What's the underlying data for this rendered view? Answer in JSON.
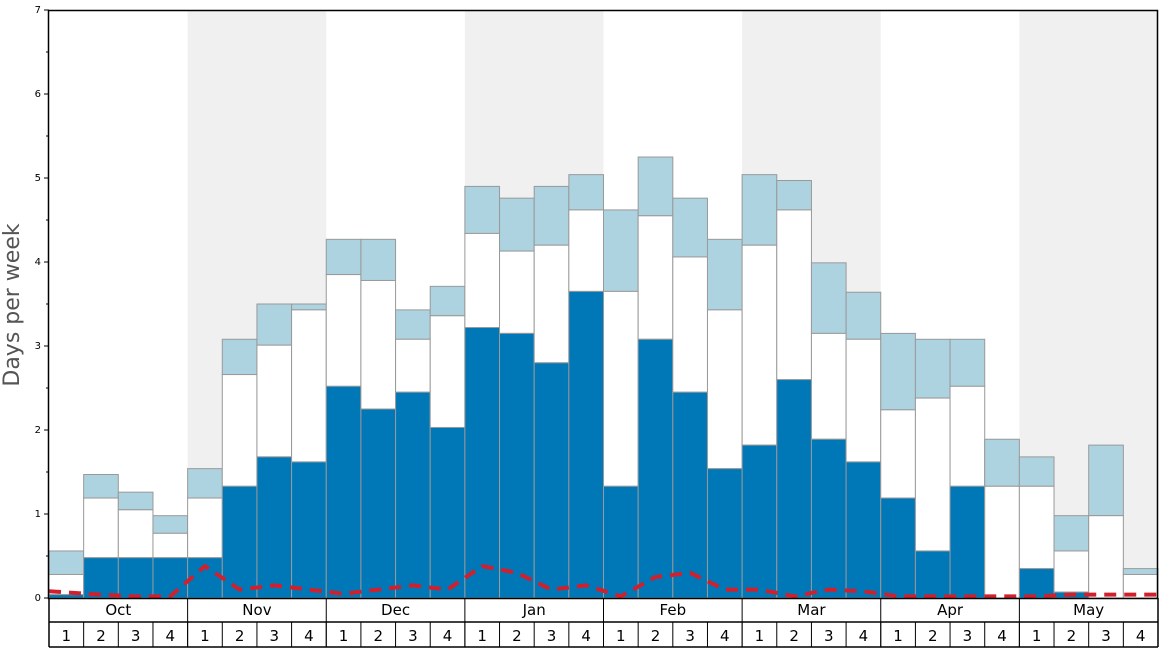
{
  "chart_data": {
    "type": "bar",
    "ylabel": "Days per week",
    "ylim": [
      0,
      7
    ],
    "y_ticks": [
      "0",
      "1",
      "2",
      "3",
      "4",
      "5",
      "6",
      "7"
    ],
    "months": [
      "Oct",
      "Nov",
      "Dec",
      "Jan",
      "Feb",
      "Mar",
      "Apr",
      "May"
    ],
    "week_labels": [
      "1",
      "2",
      "3",
      "4"
    ],
    "colors": {
      "dark": "#0077b6",
      "mid": "#ffffff",
      "light": "#add3e0",
      "line": "#d0202e",
      "band": "#f0f0f0"
    },
    "stacked_levels": {
      "dark": [
        0.04,
        0.48,
        0.48,
        0.48,
        0.48,
        1.33,
        1.68,
        1.62,
        2.52,
        2.25,
        2.45,
        2.03,
        3.22,
        3.15,
        2.8,
        3.65,
        1.33,
        3.08,
        2.45,
        1.54,
        1.82,
        2.6,
        1.89,
        1.62,
        1.19,
        0.56,
        1.33,
        0.0,
        0.35,
        0.07,
        0.0,
        0.0
      ],
      "mid": [
        0.28,
        1.19,
        1.05,
        0.77,
        1.19,
        2.66,
        3.01,
        3.43,
        3.85,
        3.78,
        3.08,
        3.36,
        4.34,
        4.13,
        4.2,
        4.62,
        3.65,
        4.55,
        4.06,
        3.43,
        4.2,
        4.62,
        3.15,
        3.08,
        2.24,
        2.38,
        2.52,
        1.33,
        1.33,
        0.56,
        0.98,
        0.28
      ],
      "light": [
        0.56,
        1.47,
        1.26,
        0.98,
        1.54,
        3.08,
        3.5,
        3.5,
        4.27,
        4.27,
        3.43,
        3.71,
        4.9,
        4.76,
        4.9,
        5.04,
        4.62,
        5.25,
        4.76,
        4.27,
        5.04,
        4.97,
        3.99,
        3.64,
        3.15,
        3.08,
        3.08,
        1.89,
        1.68,
        0.98,
        1.82,
        0.35
      ]
    },
    "line_values": [
      0.08,
      0.04,
      0.02,
      0.02,
      0.38,
      0.1,
      0.15,
      0.1,
      0.05,
      0.1,
      0.15,
      0.1,
      0.38,
      0.3,
      0.1,
      0.15,
      0.02,
      0.25,
      0.3,
      0.1,
      0.1,
      0.02,
      0.1,
      0.08,
      0.02,
      0.02,
      0.02,
      0.02,
      0.02,
      0.04,
      0.04,
      0.04
    ],
    "grid": false
  }
}
